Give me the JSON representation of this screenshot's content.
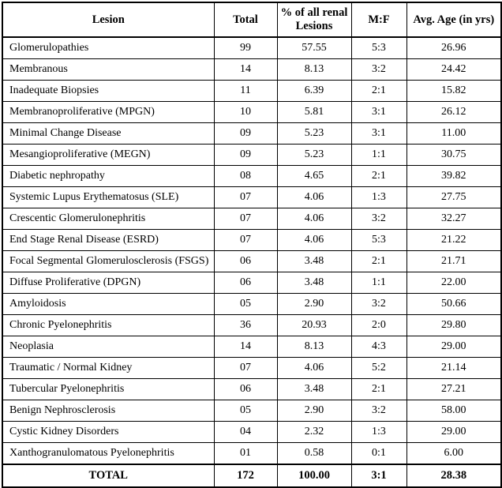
{
  "table": {
    "headers": {
      "lesion": "Lesion",
      "total": "Total",
      "pct": "% of all renal Lesions",
      "mf": "M:F",
      "avg_age": "Avg. Age (in yrs)"
    },
    "rows": [
      {
        "lesion": "Glomerulopathies",
        "total": "99",
        "pct": "57.55",
        "mf": "5:3",
        "avg_age": "26.96"
      },
      {
        "lesion": "Membranous",
        "total": "14",
        "pct": "8.13",
        "mf": "3:2",
        "avg_age": "24.42"
      },
      {
        "lesion": "Inadequate Biopsies",
        "total": "11",
        "pct": "6.39",
        "mf": "2:1",
        "avg_age": "15.82"
      },
      {
        "lesion": "Membranoproliferative (MPGN)",
        "total": "10",
        "pct": "5.81",
        "mf": "3:1",
        "avg_age": "26.12"
      },
      {
        "lesion": "Minimal Change Disease",
        "total": "09",
        "pct": "5.23",
        "mf": "3:1",
        "avg_age": "11.00"
      },
      {
        "lesion": "Mesangioproliferative (MEGN)",
        "total": "09",
        "pct": "5.23",
        "mf": "1:1",
        "avg_age": "30.75"
      },
      {
        "lesion": "Diabetic nephropathy",
        "total": "08",
        "pct": "4.65",
        "mf": "2:1",
        "avg_age": "39.82"
      },
      {
        "lesion": "Systemic Lupus Erythematosus (SLE)",
        "total": "07",
        "pct": "4.06",
        "mf": "1:3",
        "avg_age": "27.75"
      },
      {
        "lesion": "Crescentic Glomerulonephritis",
        "total": "07",
        "pct": "4.06",
        "mf": "3:2",
        "avg_age": "32.27"
      },
      {
        "lesion": "End Stage Renal Disease  (ESRD)",
        "total": "07",
        "pct": "4.06",
        "mf": "5:3",
        "avg_age": "21.22"
      },
      {
        "lesion": "Focal Segmental Glomerulosclerosis (FSGS)",
        "total": "06",
        "pct": "3.48",
        "mf": "2:1",
        "avg_age": "21.71"
      },
      {
        "lesion": "Diffuse Proliferative (DPGN)",
        "total": "06",
        "pct": "3.48",
        "mf": "1:1",
        "avg_age": "22.00"
      },
      {
        "lesion": "Amyloidosis",
        "total": "05",
        "pct": "2.90",
        "mf": "3:2",
        "avg_age": "50.66"
      },
      {
        "lesion": "Chronic Pyelonephritis",
        "total": "36",
        "pct": "20.93",
        "mf": "2:0",
        "avg_age": "29.80"
      },
      {
        "lesion": "Neoplasia",
        "total": "14",
        "pct": "8.13",
        "mf": "4:3",
        "avg_age": "29.00"
      },
      {
        "lesion": "Traumatic / Normal Kidney",
        "total": "07",
        "pct": "4.06",
        "mf": "5:2",
        "avg_age": "21.14"
      },
      {
        "lesion": "Tubercular Pyelonephritis",
        "total": "06",
        "pct": "3.48",
        "mf": "2:1",
        "avg_age": "27.21"
      },
      {
        "lesion": "Benign Nephrosclerosis",
        "total": "05",
        "pct": "2.90",
        "mf": "3:2",
        "avg_age": "58.00"
      },
      {
        "lesion": "Cystic Kidney Disorders",
        "total": "04",
        "pct": "2.32",
        "mf": "1:3",
        "avg_age": "29.00"
      },
      {
        "lesion": "Xanthogranulomatous Pyelonephritis",
        "total": "01",
        "pct": "0.58",
        "mf": "0:1",
        "avg_age": "6.00"
      }
    ],
    "footer": {
      "lesion": "TOTAL",
      "total": "172",
      "pct": "100.00",
      "mf": "3:1",
      "avg_age": "28.38"
    }
  }
}
